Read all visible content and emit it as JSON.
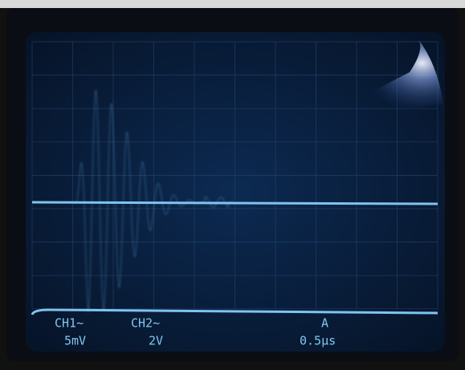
{
  "readouts": {
    "ch1_label": "CH1~",
    "ch1_scale": "5mV",
    "ch2_label": "CH2~",
    "ch2_scale": "2V",
    "timebase_label": "A",
    "timebase_scale": "0.5µs"
  }
}
